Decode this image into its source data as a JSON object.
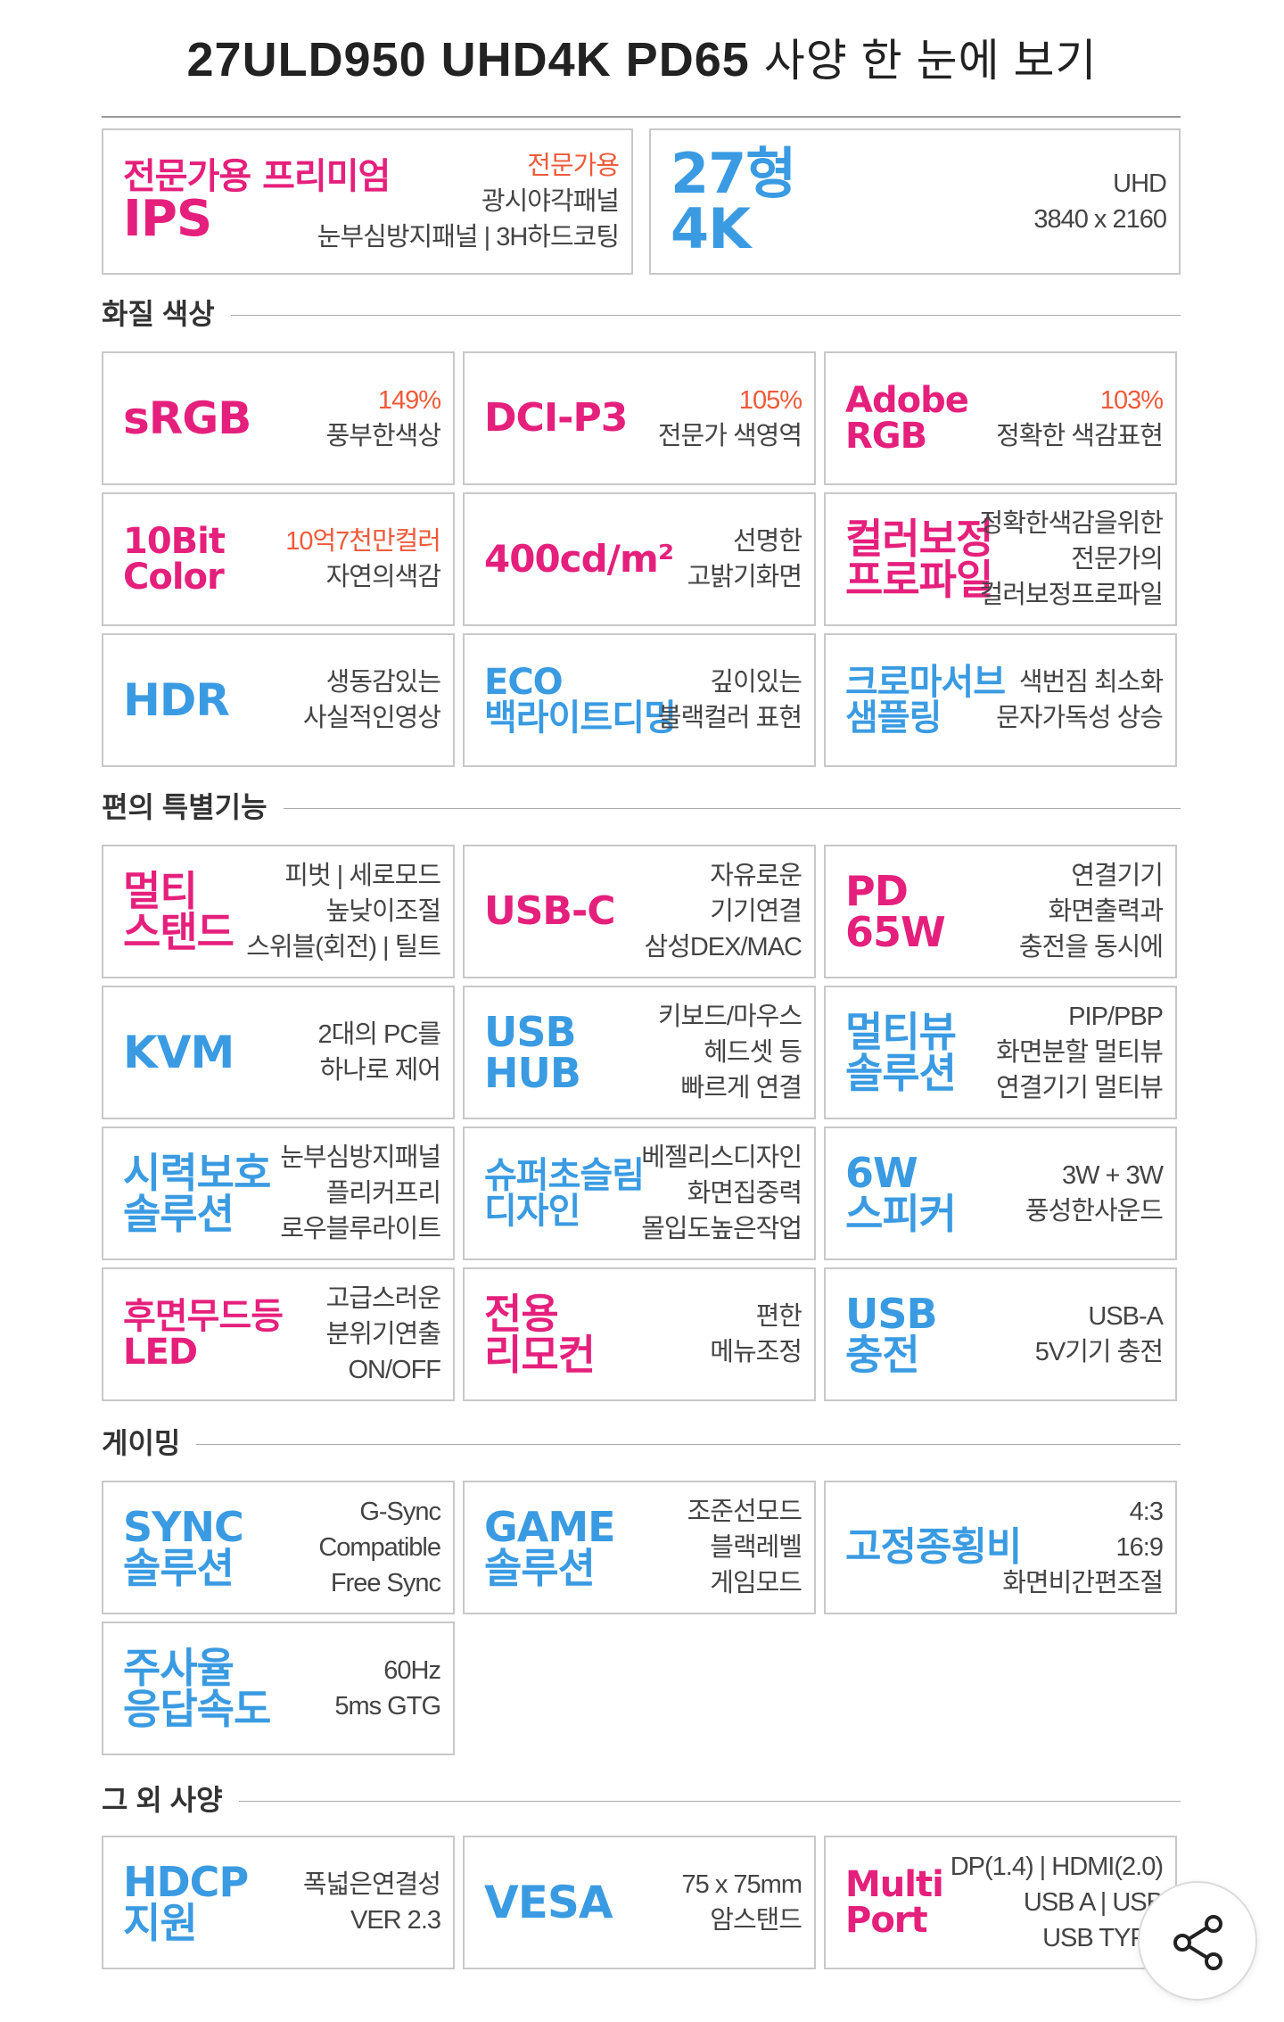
{
  "title": {
    "model": "27ULD950 UHD4K PD65",
    "suffix": "사양 한 눈에 보기"
  },
  "colors": {
    "pink": "#e5207c",
    "blue": "#3a9be2",
    "orange": "#ef5a3a"
  },
  "top": [
    {
      "big": [
        "전문가용 프리미엄",
        "IPS"
      ],
      "color": "pink",
      "desc": [
        "전문가용",
        "광시야각패널",
        "눈부심방지패널 | 3H하드코팅"
      ],
      "hl": [
        0
      ]
    },
    {
      "big": [
        "27형",
        "4K"
      ],
      "color": "blue",
      "desc": [
        "UHD",
        "3840 x 2160"
      ],
      "hl": []
    }
  ],
  "sections": [
    {
      "title": "화질 색상",
      "cards": [
        {
          "big": [
            "sRGB"
          ],
          "color": "pink",
          "desc": [
            "149%",
            "풍부한색상"
          ],
          "hl": [
            0
          ]
        },
        {
          "big": [
            "DCI-P3"
          ],
          "color": "pink",
          "desc": [
            "105%",
            "전문가 색영역"
          ],
          "hl": [
            0
          ]
        },
        {
          "big": [
            "Adobe",
            "RGB"
          ],
          "color": "pink",
          "desc": [
            "103%",
            "정확한 색감표현"
          ],
          "hl": [
            0
          ]
        },
        {
          "big": [
            "10Bit",
            "Color"
          ],
          "color": "pink",
          "desc": [
            "10억7천만컬러",
            "자연의색감"
          ],
          "hl": [
            0
          ]
        },
        {
          "big": [
            "400cd/m²"
          ],
          "color": "pink",
          "desc": [
            "선명한",
            "고밝기화면"
          ],
          "hl": []
        },
        {
          "big": [
            "컬러보정",
            "프로파일"
          ],
          "color": "pink",
          "desc": [
            "정확한색감을위한",
            "전문가의",
            "컬러보정프로파일"
          ],
          "hl": []
        },
        {
          "big": [
            "HDR"
          ],
          "color": "blue",
          "desc": [
            "생동감있는",
            "사실적인영상"
          ],
          "hl": []
        },
        {
          "big": [
            "ECO",
            "백라이트디밍"
          ],
          "color": "blue",
          "desc": [
            "깊이있는",
            "블랙컬러 표현"
          ],
          "hl": []
        },
        {
          "big": [
            "크로마서브",
            "샘플링"
          ],
          "color": "blue",
          "desc": [
            "색번짐 최소화",
            "문자가독성 상승"
          ],
          "hl": []
        }
      ]
    },
    {
      "title": "편의 특별기능",
      "cards": [
        {
          "big": [
            "멀티",
            "스탠드"
          ],
          "color": "pink",
          "desc": [
            "피벗 | 세로모드",
            "높낮이조절",
            "스위블(회전) | 틸트"
          ],
          "hl": []
        },
        {
          "big": [
            "USB-C"
          ],
          "color": "pink",
          "desc": [
            "자유로운",
            "기기연결",
            "삼성DEX/MAC"
          ],
          "hl": []
        },
        {
          "big": [
            "PD",
            "65W"
          ],
          "color": "pink",
          "desc": [
            "연결기기",
            "화면출력과",
            "충전을 동시에"
          ],
          "hl": []
        },
        {
          "big": [
            "KVM"
          ],
          "color": "blue",
          "desc": [
            "2대의 PC를",
            "하나로 제어"
          ],
          "hl": []
        },
        {
          "big": [
            "USB",
            "HUB"
          ],
          "color": "blue",
          "desc": [
            "키보드/마우스",
            "헤드셋 등",
            "빠르게 연결"
          ],
          "hl": []
        },
        {
          "big": [
            "멀티뷰",
            "솔루션"
          ],
          "color": "blue",
          "desc": [
            "PIP/PBP",
            "화면분할 멀티뷰",
            "연결기기 멀티뷰"
          ],
          "hl": []
        },
        {
          "big": [
            "시력보호",
            "솔루션"
          ],
          "color": "blue",
          "desc": [
            "눈부심방지패널",
            "플리커프리",
            "로우블루라이트"
          ],
          "hl": []
        },
        {
          "big": [
            "슈퍼초슬림",
            "디자인"
          ],
          "color": "blue",
          "desc": [
            "베젤리스디자인",
            "화면집중력",
            "몰입도높은작업"
          ],
          "hl": []
        },
        {
          "big": [
            "6W",
            "스피커"
          ],
          "color": "blue",
          "desc": [
            "3W + 3W",
            "풍성한사운드"
          ],
          "hl": []
        },
        {
          "big": [
            "후면무드등",
            "LED"
          ],
          "color": "pink",
          "desc": [
            "고급스러운",
            "분위기연출",
            "ON/OFF"
          ],
          "hl": []
        },
        {
          "big": [
            "전용",
            "리모컨"
          ],
          "color": "pink",
          "desc": [
            "편한",
            "메뉴조정"
          ],
          "hl": []
        },
        {
          "big": [
            "USB",
            "충전"
          ],
          "color": "blue",
          "desc": [
            "USB-A",
            "5V기기 충전"
          ],
          "hl": []
        }
      ]
    },
    {
      "title": "게이밍",
      "cards": [
        {
          "big": [
            "SYNC",
            "솔루션"
          ],
          "color": "blue",
          "desc": [
            "G-Sync",
            "Compatible",
            "Free Sync"
          ],
          "hl": []
        },
        {
          "big": [
            "GAME",
            "솔루션"
          ],
          "color": "blue",
          "desc": [
            "조준선모드",
            "블랙레벨",
            "게임모드"
          ],
          "hl": []
        },
        {
          "big": [
            "고정종횡비"
          ],
          "color": "blue",
          "desc": [
            "4:3",
            "16:9",
            "화면비간편조절"
          ],
          "hl": []
        },
        {
          "big": [
            "주사율",
            "응답속도"
          ],
          "color": "blue",
          "desc": [
            "60Hz",
            "5ms GTG"
          ],
          "hl": []
        }
      ]
    },
    {
      "title": "그 외 사양",
      "cards": [
        {
          "big": [
            "HDCP",
            "지원"
          ],
          "color": "blue",
          "desc": [
            "폭넓은연결성",
            "VER 2.3"
          ],
          "hl": []
        },
        {
          "big": [
            "VESA"
          ],
          "color": "blue",
          "desc": [
            "75 x 75mm",
            "암스탠드"
          ],
          "hl": []
        },
        {
          "big": [
            "Multi",
            "Port"
          ],
          "color": "pink",
          "desc": [
            "DP(1.4) | HDMI(2.0)",
            "USB A | USB",
            "USB TYPE"
          ],
          "hl": []
        }
      ]
    }
  ],
  "share": {
    "icon": "share-icon"
  }
}
